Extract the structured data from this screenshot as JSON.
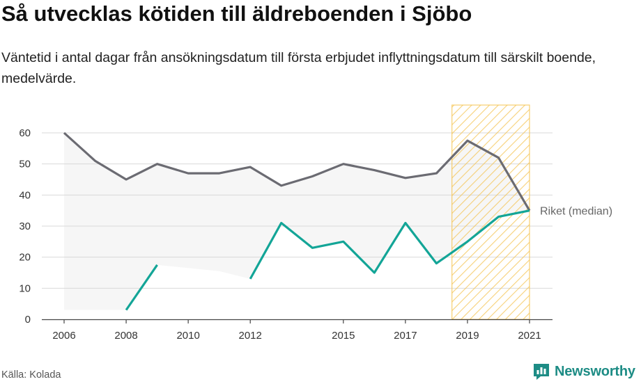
{
  "title": "Så utvecklas kötiden till äldreboenden i Sjöbo",
  "subtitle": "Väntetid i antal dagar från ansökningsdatum till första erbjudet inflyttningsdatum till särskilt boende, medelvärde.",
  "source": "Källa: Kolada",
  "brand": "Newsworthy",
  "colors": {
    "riket": "#6b6b72",
    "sjobo": "#13a597",
    "band_fill": "#eeeeee",
    "highlight": "#f5c24c",
    "grid": "#d9d9d9"
  },
  "chart_data": {
    "type": "line",
    "xlim": [
      2006,
      2021
    ],
    "ylim": [
      0,
      60
    ],
    "yticks": [
      0,
      10,
      20,
      30,
      40,
      50,
      60
    ],
    "xticks": [
      2006,
      2008,
      2010,
      2012,
      2015,
      2017,
      2019,
      2021
    ],
    "grid": true,
    "highlight_range": [
      2018.5,
      2021
    ],
    "series": [
      {
        "name": "Riket (median)",
        "x": [
          2006,
          2007,
          2008,
          2009,
          2010,
          2011,
          2012,
          2013,
          2014,
          2015,
          2016,
          2017,
          2018,
          2019,
          2020,
          2021
        ],
        "y": [
          60,
          51,
          45,
          50,
          47,
          47,
          49,
          43,
          46,
          50,
          48,
          45.5,
          47,
          57.5,
          52,
          35
        ]
      },
      {
        "name": "",
        "x": [
          2006,
          2007,
          2008,
          2009,
          2010,
          2011,
          2012,
          2013,
          2014,
          2015,
          2016,
          2017,
          2018,
          2019,
          2020,
          2021
        ],
        "y": [
          null,
          null,
          3,
          17.5,
          null,
          null,
          13,
          31,
          23,
          25,
          15,
          31,
          18,
          25,
          33,
          35
        ]
      }
    ],
    "band": {
      "x": [
        2006,
        2007,
        2008,
        2009,
        2010,
        2011,
        2012,
        2013,
        2014,
        2015,
        2016,
        2017,
        2018,
        2019,
        2020,
        2021
      ],
      "low": [
        3,
        3,
        3,
        17.5,
        16.5,
        15.5,
        13,
        31,
        23,
        25,
        15,
        31,
        18,
        25,
        33,
        35
      ]
    }
  }
}
